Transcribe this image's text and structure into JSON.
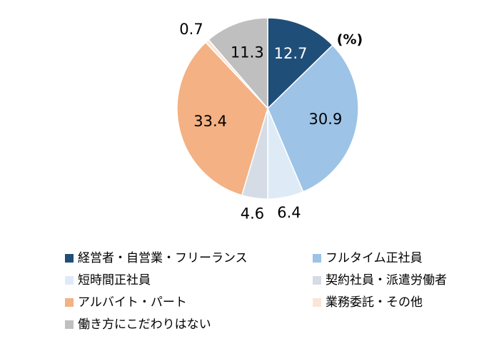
{
  "chart_data": {
    "type": "pie",
    "unit_note": "(%)",
    "categories": [
      "経営者・自営業・フリーランス",
      "フルタイム正社員",
      "短時間正社員",
      "契約社員・派遣労働者",
      "アルバイト・パート",
      "業務委託・その他",
      "働き方にこだわりはない"
    ],
    "values": [
      12.7,
      30.9,
      6.4,
      4.6,
      33.4,
      0.7,
      11.3
    ],
    "colors": [
      "#1f4e79",
      "#9dc3e6",
      "#deebf7",
      "#d6dce5",
      "#f4b183",
      "#fbe5d6",
      "#bfbfbf"
    ]
  }
}
